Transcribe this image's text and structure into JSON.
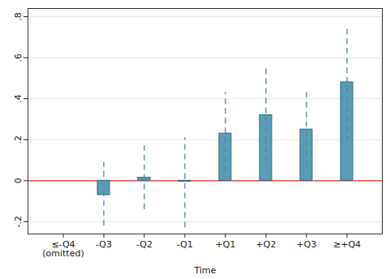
{
  "chart_data": {
    "type": "bar",
    "x_label": "Time",
    "categories": [
      "≤-Q4\n(omitted)",
      "-Q3",
      "-Q2",
      "-Q1",
      "+Q1",
      "+Q2",
      "+Q3",
      "≥+Q4"
    ],
    "values": [
      null,
      -0.07,
      0.015,
      -0.005,
      0.23,
      0.32,
      0.25,
      0.48
    ],
    "ci_low": [
      null,
      -0.22,
      -0.14,
      -0.23,
      0.04,
      0.09,
      0.07,
      0.19
    ],
    "ci_high": [
      null,
      0.09,
      0.17,
      0.21,
      0.43,
      0.55,
      0.43,
      0.76
    ],
    "reference_line": 0,
    "color": "#5b9bb5",
    "ylim": [
      -0.26,
      0.84
    ],
    "yticks": [
      {
        "value": -0.2,
        "label": "-.2"
      },
      0,
      {
        "value": 0.2,
        "label": ".2"
      },
      {
        "value": 0.4,
        "label": ".4"
      },
      {
        "value": 0.6,
        "label": ".6"
      },
      {
        "value": 0.8,
        "label": ".8"
      }
    ],
    "grid": true
  }
}
